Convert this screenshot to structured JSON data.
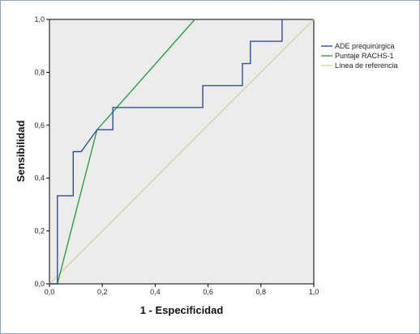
{
  "chart_data": {
    "type": "line",
    "title": "",
    "xlabel": "1 - Especificidad",
    "ylabel": "Sensibilidad",
    "xlim": [
      0,
      1
    ],
    "ylim": [
      0,
      1
    ],
    "x_ticks": [
      "0,0",
      "0,2",
      "0,4",
      "0,6",
      "0,8",
      "1,0"
    ],
    "y_ticks": [
      "0,0",
      "0,2",
      "0,4",
      "0,6",
      "0,8",
      "1,0"
    ],
    "grid": false,
    "legend_position": "right",
    "series": [
      {
        "name": "ADE prequirúrgica",
        "color": "#2a4fa0",
        "x": [
          0,
          0.03,
          0.03,
          0.09,
          0.09,
          0.12,
          0.18,
          0.24,
          0.24,
          0.58,
          0.58,
          0.73,
          0.73,
          0.76,
          0.76,
          0.88,
          0.88
        ],
        "y": [
          0,
          0,
          0.333,
          0.333,
          0.5,
          0.5,
          0.583,
          0.583,
          0.667,
          0.667,
          0.75,
          0.75,
          0.833,
          0.833,
          0.917,
          0.917,
          1.0
        ]
      },
      {
        "name": "Puntaje RACHS-1",
        "color": "#2aa040",
        "x": [
          0,
          0.03,
          0.18,
          0.55
        ],
        "y": [
          0,
          0,
          0.583,
          1.0
        ]
      },
      {
        "name": "Línea de referencia",
        "color": "#d8d2a0",
        "x": [
          0,
          1
        ],
        "y": [
          0,
          1
        ]
      }
    ]
  }
}
